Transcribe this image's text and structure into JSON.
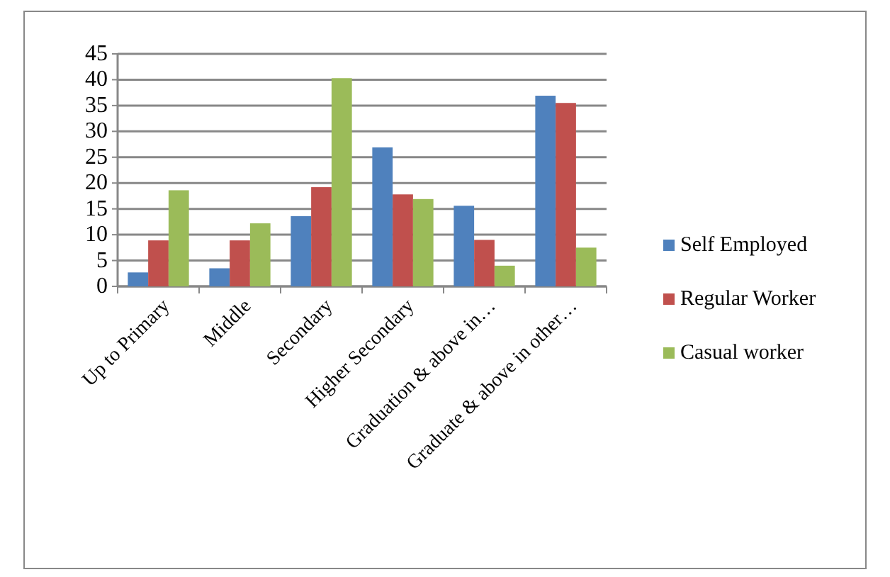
{
  "chart_data": {
    "type": "bar",
    "categories": [
      "Up to Primary",
      "Middle",
      "Secondary",
      "Higher Secondary",
      "Graduation & above in…",
      "Graduate & above in other…"
    ],
    "series": [
      {
        "name": "Self Employed",
        "color": "#4f81bd",
        "values": [
          2.7,
          3.5,
          13.6,
          26.9,
          15.6,
          36.9
        ]
      },
      {
        "name": "Regular Worker",
        "color": "#c0504d",
        "values": [
          8.9,
          8.9,
          19.2,
          17.8,
          9.0,
          35.5
        ]
      },
      {
        "name": "Casual worker",
        "color": "#9bbb59",
        "values": [
          18.6,
          12.2,
          40.3,
          16.9,
          4.0,
          7.5
        ]
      }
    ],
    "ylim": [
      0,
      45
    ],
    "yticks": [
      0,
      5,
      10,
      15,
      20,
      25,
      30,
      35,
      40,
      45
    ],
    "grid": "y",
    "legend": "right"
  }
}
